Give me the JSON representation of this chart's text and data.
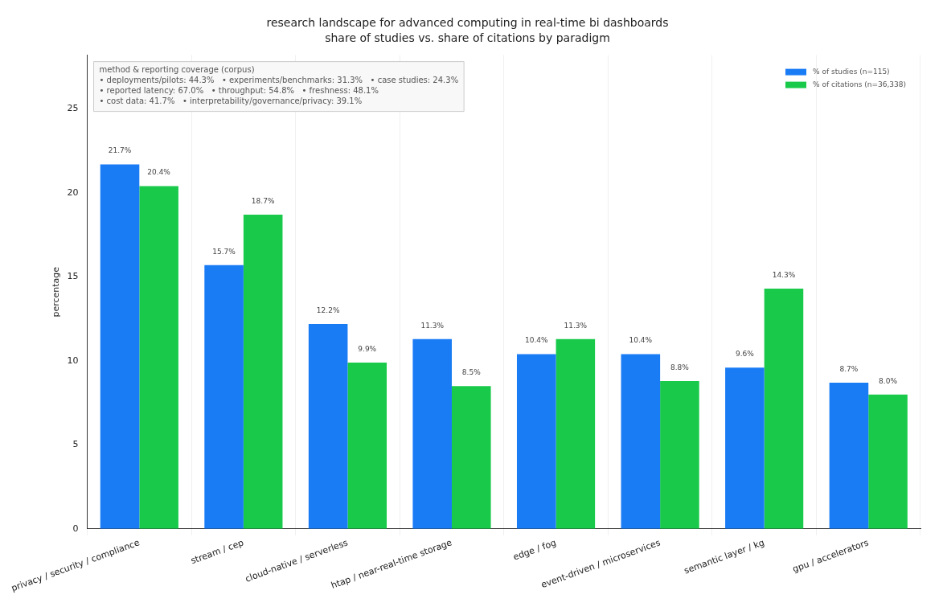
{
  "chart_data": {
    "type": "bar",
    "title": "research landscape for advanced computing in real-time bi dashboards",
    "subtitle": "share of studies vs. share of citations by paradigm",
    "ylabel": "percentage",
    "categories": [
      "privacy / security / compliance",
      "stream / cep",
      "cloud-native / serverless",
      "htap / near-real-time storage",
      "edge / fog",
      "event-driven / microservices",
      "semantic layer / kg",
      "gpu / accelerators"
    ],
    "series": [
      {
        "name": "% of studies (n=115)",
        "color": "#1a7cf5",
        "values": [
          21.7,
          15.7,
          12.2,
          11.3,
          10.4,
          10.4,
          9.6,
          8.7
        ]
      },
      {
        "name": "% of citations (n=36,338)",
        "color": "#18c94a",
        "values": [
          20.4,
          18.7,
          9.9,
          8.5,
          11.3,
          8.8,
          14.3,
          8.0
        ]
      }
    ],
    "ylim": [
      0,
      28.2
    ],
    "yticks": [
      0,
      5,
      10,
      15,
      20,
      25
    ],
    "grid": "x",
    "legend": "top right",
    "value_labels": [
      [
        "21.7%",
        "15.7%",
        "12.2%",
        "11.3%",
        "10.4%",
        "10.4%",
        "9.6%",
        "8.7%"
      ],
      [
        "20.4%",
        "18.7%",
        "9.9%",
        "8.5%",
        "11.3%",
        "8.8%",
        "14.3%",
        "8.0%"
      ]
    ],
    "annotations": [
      "method & reporting coverage (corpus)",
      "• deployments/pilots: 44.3%   • experiments/benchmarks: 31.3%   • case studies: 24.3%",
      "• reported latency: 67.0%   • throughput: 54.8%   • freshness: 48.1%",
      "• cost data: 41.7%   • interpretability/governance/privacy: 39.1%"
    ]
  }
}
